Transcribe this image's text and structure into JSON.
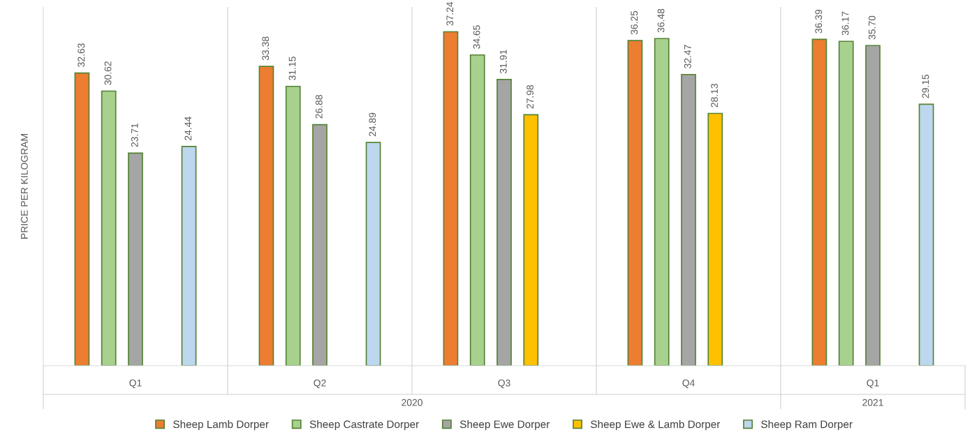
{
  "chart_data": {
    "type": "bar",
    "ylabel": "PRICE PER KILOGRAM",
    "categories": [
      "Q1",
      "Q2",
      "Q3",
      "Q4",
      "Q1"
    ],
    "series": [
      {
        "name": "Sheep Lamb Dorper",
        "color": "#ed7d31",
        "values": [
          32.63,
          33.38,
          37.24,
          36.25,
          36.39
        ],
        "value_labels": [
          "32.63",
          "33.38",
          "37.24",
          "36.25",
          "36.39"
        ]
      },
      {
        "name": "Sheep Castrate Dorper",
        "color": "#a9d18e",
        "values": [
          30.62,
          31.15,
          34.65,
          36.48,
          36.17
        ],
        "value_labels": [
          "30.62",
          "31.15",
          "34.65",
          "36.48",
          "36.17"
        ]
      },
      {
        "name": "Sheep Ewe Dorper",
        "color": "#a5a5a5",
        "values": [
          23.71,
          26.88,
          31.91,
          32.47,
          35.7
        ],
        "value_labels": [
          "23.71",
          "26.88",
          "31.91",
          "32.47",
          "35.70"
        ]
      },
      {
        "name": "Sheep Ewe & Lamb Dorper",
        "color": "#ffc000",
        "values": [
          null,
          null,
          27.98,
          28.13,
          null
        ],
        "value_labels": [
          null,
          null,
          "27.98",
          "28.13",
          null
        ]
      },
      {
        "name": "Sheep Ram Dorper",
        "color": "#bdd7ee",
        "values": [
          24.44,
          24.89,
          null,
          null,
          29.15
        ],
        "value_labels": [
          "24.44",
          "24.89",
          null,
          null,
          "29.15"
        ]
      }
    ],
    "annotations": [
      "2020",
      "2021"
    ],
    "ylim": [
      0,
      40
    ],
    "tick_labels": "x",
    "legend": "bottom",
    "grid": "x"
  }
}
